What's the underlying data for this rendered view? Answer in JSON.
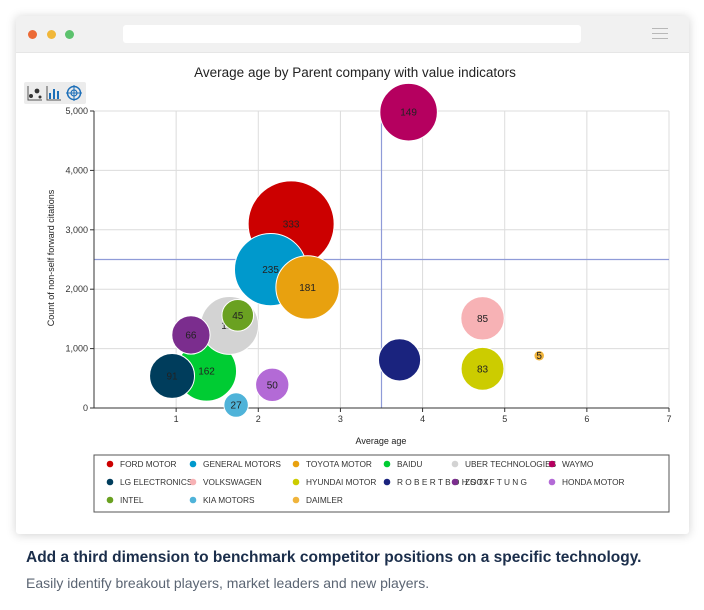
{
  "window": {
    "controls": [
      {
        "name": "close",
        "color": "#ec6a36"
      },
      {
        "name": "minimize",
        "color": "#f1b739"
      },
      {
        "name": "zoom",
        "color": "#5cc26d"
      }
    ],
    "menu_icon": "hamburger-menu-icon"
  },
  "toolbar": {
    "icons": [
      "scatter-view-icon",
      "bar-view-icon",
      "target-icon"
    ]
  },
  "chart_data": {
    "type": "bubble",
    "title": "Average age by Parent company with value indicators",
    "xlabel": "Average age",
    "ylabel": "Count of non-self forward citations",
    "xlim": [
      0,
      7
    ],
    "ylim": [
      0,
      5000
    ],
    "x_ticks": [
      1,
      2,
      3,
      4,
      5,
      6,
      7
    ],
    "y_ticks": [
      0,
      1000,
      2000,
      3000,
      4000,
      5000
    ],
    "y_tick_labels": [
      "0",
      "1,000",
      "2,000",
      "3,000",
      "4,000",
      "5,000"
    ],
    "grid": true,
    "reference_lines": {
      "x": 3.5,
      "y": 2500
    },
    "series": [
      {
        "name": "FORD MOTOR",
        "color": "#cc0000",
        "x": 2.4,
        "y": 3100,
        "value": 333,
        "label": "333"
      },
      {
        "name": "GENERAL MOTORS",
        "color": "#0099cc",
        "x": 2.15,
        "y": 2330,
        "value": 235,
        "label": "235"
      },
      {
        "name": "TOYOTA MOTOR",
        "color": "#e8a10f",
        "x": 2.6,
        "y": 2030,
        "value": 181,
        "label": "181"
      },
      {
        "name": "BAIDU",
        "color": "#00cc33",
        "x": 1.37,
        "y": 620,
        "value": 162,
        "label": "162"
      },
      {
        "name": "UBER TECHNOLOGIES",
        "color": "#d3d3d3",
        "x": 1.65,
        "y": 1390,
        "value": 151,
        "label": "151"
      },
      {
        "name": "WAYMO",
        "color": "#b5005f",
        "x": 3.83,
        "y": 4980,
        "value": 149,
        "label": "149"
      },
      {
        "name": "LG ELECTRONICS",
        "color": "#003d5c",
        "x": 0.95,
        "y": 540,
        "value": 91,
        "label": "91"
      },
      {
        "name": "VOLKSWAGEN",
        "color": "#f7b2b5",
        "x": 4.73,
        "y": 1510,
        "value": 85,
        "label": "85"
      },
      {
        "name": "HYUNDAI MOTOR",
        "color": "#cccc00",
        "x": 4.73,
        "y": 660,
        "value": 83,
        "label": "83"
      },
      {
        "name": "R O B E R T B O H S T I F T U N G",
        "color": "#1a237e",
        "x": 3.72,
        "y": 810,
        "value": 80,
        "label": ""
      },
      {
        "name": "ZOOX",
        "color": "#7b2d8e",
        "x": 1.18,
        "y": 1230,
        "value": 66,
        "label": "66"
      },
      {
        "name": "HONDA MOTOR",
        "color": "#b36ad6",
        "x": 2.17,
        "y": 390,
        "value": 50,
        "label": "50"
      },
      {
        "name": "INTEL",
        "color": "#6aa121",
        "x": 1.75,
        "y": 1560,
        "value": 45,
        "label": "45"
      },
      {
        "name": "KIA MOTORS",
        "color": "#4fb3d9",
        "x": 1.73,
        "y": 50,
        "value": 27,
        "label": "27"
      },
      {
        "name": "DAIMLER",
        "color": "#f0b43c",
        "x": 5.42,
        "y": 880,
        "value": 5,
        "label": "5"
      }
    ],
    "legend_position": "bottom"
  },
  "caption": {
    "heading": "Add a third dimension to benchmark competitor positions on a specific technology.",
    "subtext": "Easily identify breakout players, market leaders and new players."
  }
}
